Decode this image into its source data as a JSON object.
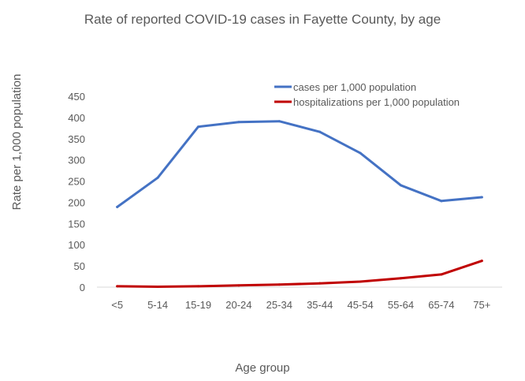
{
  "chart_data": {
    "type": "line",
    "title": "Rate of reported COVID-19 cases in Fayette County, by age",
    "xlabel": "Age group",
    "ylabel": "Rate per 1,000 population",
    "categories": [
      "<5",
      "5-14",
      "15-19",
      "20-24",
      "25-34",
      "35-44",
      "45-54",
      "55-64",
      "65-74",
      "75+"
    ],
    "ylim": [
      0,
      450
    ],
    "yticks": [
      0,
      50,
      100,
      150,
      200,
      250,
      300,
      350,
      400,
      450
    ],
    "grid": false,
    "legend_position": "top-right",
    "series": [
      {
        "name": "cases per 1,000 population",
        "color": "#4472C4",
        "values": [
          189,
          258,
          378,
          389,
          391,
          366,
          316,
          240,
          203,
          212
        ]
      },
      {
        "name": "hospitalizations per 1,000 population",
        "color": "#C00000",
        "values": [
          2,
          1,
          2,
          4,
          6,
          9,
          13,
          21,
          30,
          62
        ]
      }
    ]
  }
}
